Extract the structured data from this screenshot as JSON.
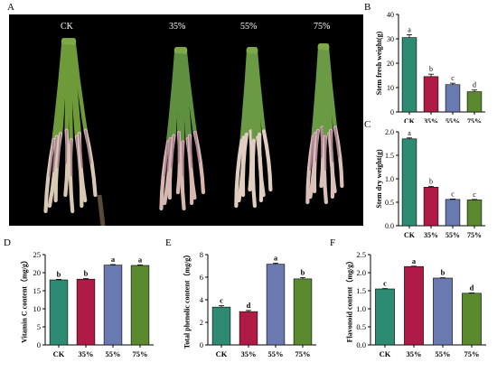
{
  "panel_letters": [
    "A",
    "B",
    "C",
    "D",
    "E",
    "F"
  ],
  "photo": {
    "labels": [
      "CK",
      "35%",
      "55%",
      "75%"
    ],
    "spear_counts": [
      8,
      8,
      8,
      8
    ]
  },
  "colors": {
    "CK": "#2e8b73",
    "35%": "#b01a47",
    "55%": "#6a79b0",
    "75%": "#5b8a2e"
  },
  "chart_data": [
    {
      "id": "B",
      "type": "bar",
      "categories": [
        "CK",
        "35%",
        "55%",
        "75%"
      ],
      "values": [
        30.5,
        14.5,
        11.2,
        8.3
      ],
      "errors": [
        1.2,
        1.0,
        0.6,
        0.7
      ],
      "significance": [
        "a",
        "b",
        "c",
        "d"
      ],
      "ylabel": "Stem fresh weight(g)",
      "ylim": [
        0,
        40
      ],
      "yticks": [
        "0",
        "10",
        "20",
        "30",
        "40"
      ],
      "grid": false
    },
    {
      "id": "C",
      "type": "bar",
      "categories": [
        "CK",
        "35%",
        "55%",
        "75%"
      ],
      "values": [
        1.85,
        0.82,
        0.56,
        0.55
      ],
      "errors": [
        0.02,
        0.02,
        0.01,
        0.01
      ],
      "significance": [
        "a",
        "b",
        "c",
        "c"
      ],
      "ylabel": "Stem dry weight(g)",
      "ylim": [
        0,
        2.0
      ],
      "yticks": [
        "0.0",
        "0.5",
        "1.0",
        "1.5",
        "2.0"
      ],
      "grid": false
    },
    {
      "id": "D",
      "type": "bar",
      "categories": [
        "CK",
        "35%",
        "55%",
        "75%"
      ],
      "values": [
        18.0,
        18.2,
        22.1,
        22.0
      ],
      "errors": [
        0.15,
        0.15,
        0.15,
        0.15
      ],
      "significance": [
        "b",
        "b",
        "a",
        "a"
      ],
      "ylabel": "Vitamin C content（mg/g）",
      "ylim": [
        0,
        25
      ],
      "yticks": [
        "0",
        "5",
        "10",
        "15",
        "20",
        "25"
      ],
      "grid": false
    },
    {
      "id": "E",
      "type": "bar",
      "categories": [
        "CK",
        "35%",
        "55%",
        "75%"
      ],
      "values": [
        3.35,
        2.95,
        7.15,
        5.85
      ],
      "errors": [
        0.12,
        0.1,
        0.1,
        0.12
      ],
      "significance": [
        "c",
        "d",
        "a",
        "b"
      ],
      "ylabel": "Total phenolic content（mg/g）",
      "ylim": [
        0,
        8
      ],
      "yticks": [
        "0",
        "2",
        "4",
        "6",
        "8"
      ],
      "grid": false
    },
    {
      "id": "F",
      "type": "bar",
      "categories": [
        "CK",
        "35%",
        "55%",
        "75%"
      ],
      "values": [
        1.55,
        2.17,
        1.85,
        1.43
      ],
      "errors": [
        0.01,
        0.01,
        0.01,
        0.01
      ],
      "significance": [
        "c",
        "a",
        "b",
        "d"
      ],
      "ylabel": "Flavonoid content（mg/g）",
      "ylim": [
        0,
        2.5
      ],
      "yticks": [
        "0.0",
        "0.5",
        "1.0",
        "1.5",
        "2.0",
        "2.5"
      ],
      "grid": false
    }
  ]
}
